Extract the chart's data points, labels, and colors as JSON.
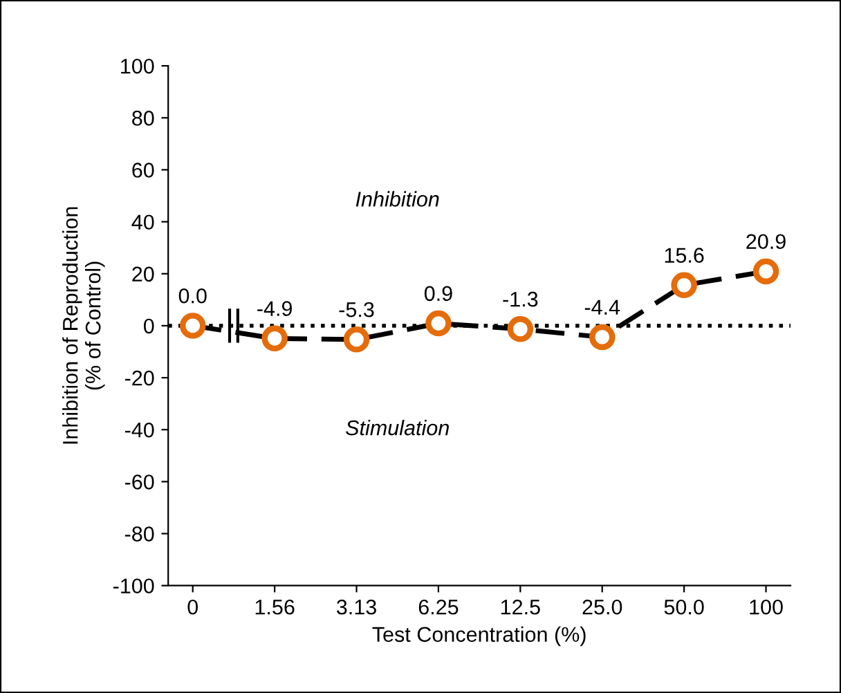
{
  "chart_data": {
    "type": "scatter",
    "xlabel": "Test Concentration (%)",
    "ylabel": "Inhibition of Reproduction\n(% of Control)",
    "categories": [
      "0",
      "1.56",
      "3.13",
      "6.25",
      "12.5",
      "25.0",
      "50.0",
      "100"
    ],
    "series": [
      {
        "type": "line",
        "color": "#000000",
        "line_style": "dashed",
        "marker": "none",
        "values": [
          0.0,
          -4.9,
          -5.3,
          0.9,
          -1.3,
          -4.4,
          15.6,
          20.9
        ]
      },
      {
        "color": "#e46c0a",
        "marker": "circle",
        "values": [
          0.0,
          -4.9,
          -5.3,
          0.9,
          -1.3,
          -4.4,
          15.6,
          20.9
        ],
        "value_labels": [
          "0.0",
          "-4.9",
          "-5.3",
          "0.9",
          "-1.3",
          "-4.4",
          "15.6",
          "20.9"
        ]
      }
    ],
    "ylim": [
      -100,
      100
    ],
    "yticks": [
      -100,
      -80,
      -60,
      -40,
      -20,
      0,
      20,
      40,
      60,
      80,
      100
    ],
    "ref_lines": [
      {
        "axis": "y",
        "value": 0,
        "color": "#000000",
        "line_style": "dotted"
      }
    ],
    "annotations": [
      "Inhibition",
      "Stimulation"
    ],
    "grid": false
  }
}
